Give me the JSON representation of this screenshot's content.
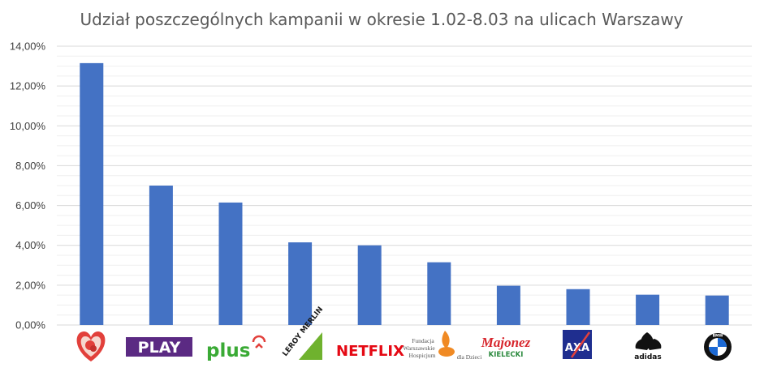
{
  "chart_data": {
    "type": "bar",
    "title": "Udział poszczególnych kampanii w okresie 1.02-8.03 na ulicach Warszawy",
    "xlabel": "",
    "ylabel": "",
    "ylim": [
      0,
      14
    ],
    "y_ticks": [
      "0,00%",
      "2,00%",
      "4,00%",
      "6,00%",
      "8,00%",
      "10,00%",
      "12,00%",
      "14,00%"
    ],
    "y_tick_values": [
      0,
      2,
      4,
      6,
      8,
      10,
      12,
      14
    ],
    "grid": true,
    "bar_color": "#4472c4",
    "categories": [
      {
        "logo": "heart-logo-icon",
        "text": ""
      },
      {
        "logo": "play-logo",
        "text": "PLAY"
      },
      {
        "logo": "plus-logo",
        "text": "plus"
      },
      {
        "logo": "leroy-merlin-logo",
        "text": "LEROY MERLIN"
      },
      {
        "logo": "netflix-logo",
        "text": "NETFLIX"
      },
      {
        "logo": "hospice-foundation-logo",
        "text": "Fundacja Warszawskie Hospicjum dla Dzieci"
      },
      {
        "logo": "majonez-kielecki-logo",
        "text": "Majonez KIELECKI"
      },
      {
        "logo": "axa-logo",
        "text": "AXA"
      },
      {
        "logo": "adidas-logo",
        "text": "adidas"
      },
      {
        "logo": "bmw-logo",
        "text": "BMW"
      }
    ],
    "values": [
      13.15,
      7.0,
      6.15,
      4.15,
      4.0,
      3.15,
      1.97,
      1.8,
      1.52,
      1.48
    ]
  }
}
